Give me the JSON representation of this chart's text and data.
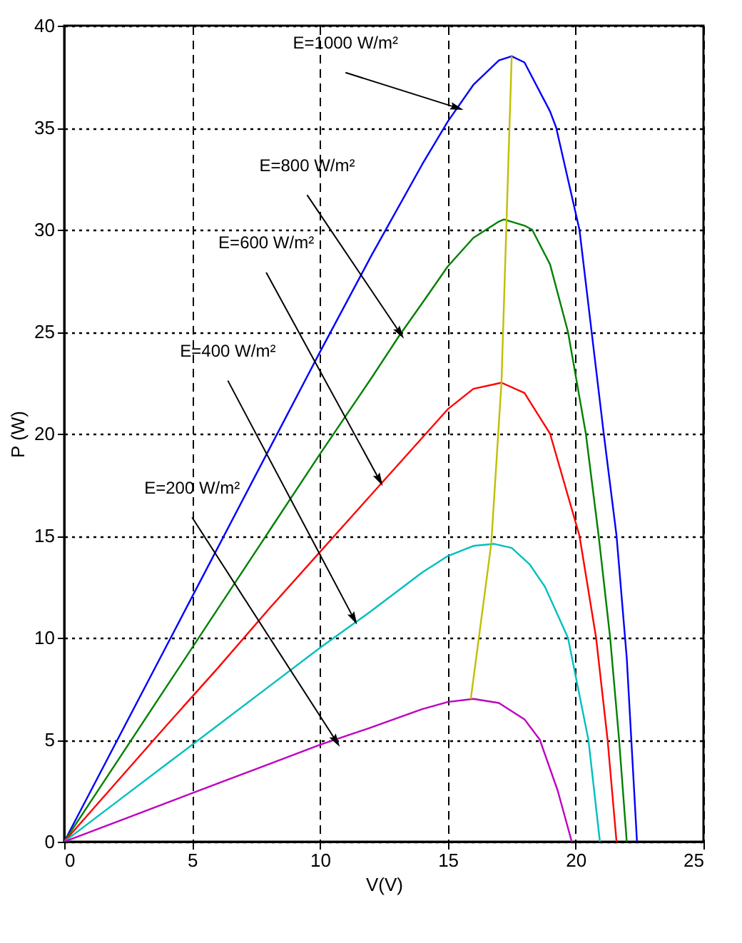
{
  "chart_data": {
    "type": "line",
    "xlabel": "V(V)",
    "ylabel": "P (W)",
    "xlim": [
      0,
      25
    ],
    "ylim": [
      0,
      40
    ],
    "xticks": [
      0,
      5,
      10,
      15,
      20,
      25
    ],
    "yticks": [
      0,
      5,
      10,
      15,
      20,
      25,
      30,
      35,
      40
    ],
    "grid": true,
    "line_style": "solid",
    "marker": "none",
    "series": [
      {
        "color": "#0000ff",
        "x": [
          0,
          2,
          4,
          6,
          8,
          10,
          12,
          14,
          15,
          16,
          17,
          17.5,
          18,
          19,
          19.24,
          20.15,
          21.1,
          21.6,
          22,
          22.4
        ],
        "values": [
          0,
          4.8,
          9.6,
          14.4,
          19.2,
          24,
          28.7,
          33.2,
          35.3,
          37.1,
          38.3,
          38.5,
          38.2,
          35.8,
          35,
          30,
          20,
          15,
          9,
          0
        ]
      },
      {
        "color": "#008000",
        "x": [
          0,
          2,
          4,
          6,
          8,
          10,
          12,
          13.1,
          14,
          15,
          16,
          17,
          17.2,
          18,
          18.3,
          19,
          19.7,
          20.4,
          20.9,
          21.35,
          21.7,
          22
        ],
        "values": [
          0,
          3.8,
          7.6,
          11.4,
          15.2,
          19,
          22.7,
          24.8,
          26.4,
          28.2,
          29.6,
          30.4,
          30.5,
          30.2,
          30,
          28.3,
          25,
          20,
          15,
          10,
          5,
          0
        ]
      },
      {
        "color": "#ff0000",
        "x": [
          0,
          2,
          4,
          6,
          8,
          10,
          12,
          14,
          15,
          16,
          17.1,
          18,
          19,
          20.15,
          20.8,
          21.25,
          21.6
        ],
        "values": [
          0,
          2.85,
          5.7,
          8.5,
          11.4,
          14.2,
          17,
          19.8,
          21.2,
          22.2,
          22.5,
          22,
          20,
          15,
          10,
          5,
          0
        ]
      },
      {
        "color": "#00bfbf",
        "x": [
          0,
          2,
          4,
          6,
          8,
          10,
          12,
          14,
          15,
          16,
          16.8,
          17.5,
          18.2,
          18.8,
          19.7,
          20.5,
          20.95
        ],
        "values": [
          0,
          1.9,
          3.8,
          5.7,
          7.6,
          9.5,
          11.3,
          13.2,
          14,
          14.5,
          14.6,
          14.4,
          13.6,
          12.5,
          10,
          5,
          0
        ]
      },
      {
        "color": "#bf00bf",
        "x": [
          0,
          2,
          4,
          6,
          8,
          10,
          12,
          14,
          15,
          16,
          17,
          18,
          18.6,
          19.3,
          19.85
        ],
        "values": [
          0,
          0.95,
          1.9,
          2.85,
          3.8,
          4.75,
          5.6,
          6.5,
          6.85,
          7,
          6.8,
          6,
          5,
          2.5,
          0
        ]
      },
      {
        "color": "#bfbf00",
        "x": [
          15.9,
          16.7,
          17.1,
          17.3,
          17.5
        ],
        "values": [
          7,
          14.6,
          22.5,
          30.5,
          38.5
        ]
      }
    ],
    "annotations": [
      {
        "text": "E=1000 W/m²",
        "x": 15.3,
        "y": 36
      },
      {
        "text": "E=800 W/m²",
        "x": 13.1,
        "y": 25
      },
      {
        "text": "E=600 W/m²",
        "x": 12.3,
        "y": 17.8
      },
      {
        "text": "E=400 W/m²",
        "x": 11.3,
        "y": 11
      },
      {
        "text": "E=200 W/m²",
        "x": 10.6,
        "y": 5
      }
    ]
  }
}
